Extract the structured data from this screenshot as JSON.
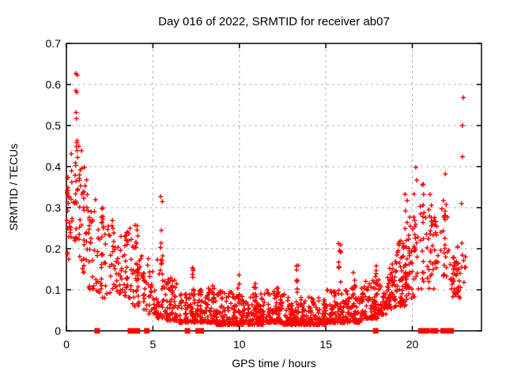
{
  "chart_data": {
    "type": "scatter",
    "title": "Day 016 of 2022, SRMTID for receiver ab07",
    "xlabel": "GPS time / hours",
    "ylabel": "SRMTID / TECUs",
    "xlim": [
      0,
      24
    ],
    "ylim": [
      0,
      0.7
    ],
    "xticks": [
      {
        "label": "0",
        "value": 0
      },
      {
        "label": "5",
        "value": 5
      },
      {
        "label": "10",
        "value": 10
      },
      {
        "label": "15",
        "value": 15
      },
      {
        "label": "20",
        "value": 20
      }
    ],
    "yticks": [
      {
        "label": "0",
        "value": 0
      },
      {
        "label": "0.1",
        "value": 0.1
      },
      {
        "label": "0.2",
        "value": 0.2
      },
      {
        "label": "0.3",
        "value": 0.3
      },
      {
        "label": "0.4",
        "value": 0.4
      },
      {
        "label": "0.5",
        "value": 0.5
      },
      {
        "label": "0.6",
        "value": 0.6
      },
      {
        "label": "0.7",
        "value": 0.7
      }
    ],
    "grid": true,
    "legend": "none",
    "marker": "plus",
    "marker_color": "#ff0000",
    "grid_color": "#b0b0b0",
    "axis_color": "#000000",
    "bands": [
      {
        "x0": 0.02,
        "x1": 0.35,
        "lo": 0.17,
        "hi": 0.44,
        "n": 28,
        "k": 1.0
      },
      {
        "x0": 0.35,
        "x1": 0.75,
        "lo": 0.22,
        "hi": 0.46,
        "n": 26,
        "k": 1.0
      },
      {
        "x0": 0.75,
        "x1": 1.25,
        "lo": 0.14,
        "hi": 0.45,
        "n": 34,
        "k": 1.2
      },
      {
        "x0": 1.25,
        "x1": 1.75,
        "lo": 0.1,
        "hi": 0.33,
        "n": 28,
        "k": 1.3
      },
      {
        "x0": 1.75,
        "x1": 2.25,
        "lo": 0.08,
        "hi": 0.28,
        "n": 24,
        "k": 1.4
      },
      {
        "x0": 2.25,
        "x1": 2.75,
        "lo": 0.09,
        "hi": 0.27,
        "n": 24,
        "k": 1.3
      },
      {
        "x0": 2.75,
        "x1": 3.25,
        "lo": 0.09,
        "hi": 0.24,
        "n": 24,
        "k": 1.3
      },
      {
        "x0": 3.25,
        "x1": 3.75,
        "lo": 0.08,
        "hi": 0.25,
        "n": 26,
        "k": 1.4
      },
      {
        "x0": 3.75,
        "x1": 4.25,
        "lo": 0.06,
        "hi": 0.26,
        "n": 28,
        "k": 1.5
      },
      {
        "x0": 4.25,
        "x1": 4.75,
        "lo": 0.05,
        "hi": 0.21,
        "n": 24,
        "k": 1.6
      },
      {
        "x0": 4.75,
        "x1": 5.25,
        "lo": 0.04,
        "hi": 0.16,
        "n": 28,
        "k": 1.8
      },
      {
        "x0": 5.25,
        "x1": 5.75,
        "lo": 0.03,
        "hi": 0.18,
        "n": 30,
        "k": 2.0
      },
      {
        "x0": 5.75,
        "x1": 6.5,
        "lo": 0.025,
        "hi": 0.13,
        "n": 55,
        "k": 2.0
      },
      {
        "x0": 6.5,
        "x1": 7.25,
        "lo": 0.02,
        "hi": 0.09,
        "n": 60,
        "k": 2.0
      },
      {
        "x0": 7.25,
        "x1": 8.0,
        "lo": 0.02,
        "hi": 0.1,
        "n": 70,
        "k": 2.0
      },
      {
        "x0": 8.0,
        "x1": 8.6,
        "lo": 0.02,
        "hi": 0.11,
        "n": 65,
        "k": 2.2
      },
      {
        "x0": 8.6,
        "x1": 10.0,
        "lo": 0.015,
        "hi": 0.1,
        "n": 130,
        "k": 2.4
      },
      {
        "x0": 10.0,
        "x1": 11.5,
        "lo": 0.015,
        "hi": 0.09,
        "n": 130,
        "k": 2.4
      },
      {
        "x0": 11.5,
        "x1": 12.5,
        "lo": 0.02,
        "hi": 0.1,
        "n": 95,
        "k": 2.4
      },
      {
        "x0": 12.5,
        "x1": 13.5,
        "lo": 0.015,
        "hi": 0.09,
        "n": 95,
        "k": 2.4
      },
      {
        "x0": 13.5,
        "x1": 15.0,
        "lo": 0.015,
        "hi": 0.085,
        "n": 130,
        "k": 2.4
      },
      {
        "x0": 15.0,
        "x1": 16.2,
        "lo": 0.02,
        "hi": 0.1,
        "n": 110,
        "k": 2.4
      },
      {
        "x0": 16.2,
        "x1": 17.2,
        "lo": 0.02,
        "hi": 0.11,
        "n": 90,
        "k": 2.2
      },
      {
        "x0": 17.2,
        "x1": 18.0,
        "lo": 0.03,
        "hi": 0.13,
        "n": 72,
        "k": 2.0
      },
      {
        "x0": 18.0,
        "x1": 18.6,
        "lo": 0.04,
        "hi": 0.13,
        "n": 50,
        "k": 1.8
      },
      {
        "x0": 18.6,
        "x1": 19.1,
        "lo": 0.05,
        "hi": 0.17,
        "n": 46,
        "k": 1.6
      },
      {
        "x0": 19.1,
        "x1": 19.7,
        "lo": 0.06,
        "hi": 0.22,
        "n": 55,
        "k": 1.5
      },
      {
        "x0": 19.7,
        "x1": 20.3,
        "lo": 0.08,
        "hi": 0.26,
        "n": 24,
        "k": 1.4
      },
      {
        "x0": 20.3,
        "x1": 21.0,
        "lo": 0.1,
        "hi": 0.31,
        "n": 20,
        "k": 1.2
      },
      {
        "x0": 21.0,
        "x1": 21.6,
        "lo": 0.1,
        "hi": 0.28,
        "n": 15,
        "k": 1.2
      },
      {
        "x0": 21.6,
        "x1": 22.2,
        "lo": 0.12,
        "hi": 0.31,
        "n": 15,
        "k": 1.1
      },
      {
        "x0": 22.2,
        "x1": 22.8,
        "lo": 0.08,
        "hi": 0.17,
        "n": 22,
        "k": 1.4
      },
      {
        "x0": 22.8,
        "x1": 23.1,
        "lo": 0.1,
        "hi": 0.22,
        "n": 8,
        "k": 1.2
      }
    ],
    "columns": [
      {
        "x": 2.05,
        "lo": 0.12,
        "hi": 0.3,
        "n": 8
      },
      {
        "x": 3.45,
        "lo": 0.1,
        "hi": 0.25,
        "n": 8
      },
      {
        "x": 4.05,
        "lo": 0.08,
        "hi": 0.26,
        "n": 10
      },
      {
        "x": 5.5,
        "lo": 0.05,
        "hi": 0.345,
        "n": 12
      },
      {
        "x": 6.1,
        "lo": 0.04,
        "hi": 0.15,
        "n": 8
      },
      {
        "x": 7.35,
        "lo": 0.09,
        "hi": 0.155,
        "n": 7
      },
      {
        "x": 9.97,
        "lo": 0.08,
        "hi": 0.145,
        "n": 6
      },
      {
        "x": 10.9,
        "lo": 0.08,
        "hi": 0.135,
        "n": 5
      },
      {
        "x": 12.2,
        "lo": 0.08,
        "hi": 0.125,
        "n": 5
      },
      {
        "x": 13.35,
        "lo": 0.09,
        "hi": 0.16,
        "n": 8
      },
      {
        "x": 15.8,
        "lo": 0.1,
        "hi": 0.225,
        "n": 9
      },
      {
        "x": 16.65,
        "lo": 0.09,
        "hi": 0.15,
        "n": 5
      },
      {
        "x": 17.9,
        "lo": 0.09,
        "hi": 0.16,
        "n": 6
      },
      {
        "x": 19.65,
        "lo": 0.1,
        "hi": 0.4,
        "n": 12
      },
      {
        "x": 19.85,
        "lo": 0.08,
        "hi": 0.3,
        "n": 8
      },
      {
        "x": 20.15,
        "lo": 0.1,
        "hi": 0.36,
        "n": 10
      },
      {
        "x": 20.6,
        "lo": 0.12,
        "hi": 0.38,
        "n": 10
      },
      {
        "x": 21.05,
        "lo": 0.1,
        "hi": 0.4,
        "n": 10
      },
      {
        "x": 21.35,
        "lo": 0.1,
        "hi": 0.3,
        "n": 8
      },
      {
        "x": 21.85,
        "lo": 0.13,
        "hi": 0.39,
        "n": 12
      },
      {
        "x": 22.4,
        "lo": 0.08,
        "hi": 0.18,
        "n": 14
      },
      {
        "x": 22.6,
        "lo": 0.09,
        "hi": 0.21,
        "n": 12
      }
    ],
    "outliers": [
      [
        0.55,
        0.627
      ],
      [
        0.62,
        0.623
      ],
      [
        0.55,
        0.585
      ],
      [
        0.6,
        0.581
      ],
      [
        0.56,
        0.532
      ],
      [
        0.58,
        0.517
      ],
      [
        0.62,
        0.463
      ],
      [
        20.2,
        0.398
      ],
      [
        20.25,
        0.367
      ],
      [
        22.95,
        0.568
      ],
      [
        22.9,
        0.5
      ],
      [
        22.9,
        0.424
      ],
      [
        22.85,
        0.31
      ]
    ],
    "zero_markers": [
      1.78,
      3.7,
      3.85,
      4.1,
      4.65,
      7.0,
      7.62,
      7.8,
      17.88,
      20.5,
      20.62,
      20.74,
      20.86,
      21.2,
      21.34,
      21.78,
      22.1,
      22.24
    ]
  }
}
